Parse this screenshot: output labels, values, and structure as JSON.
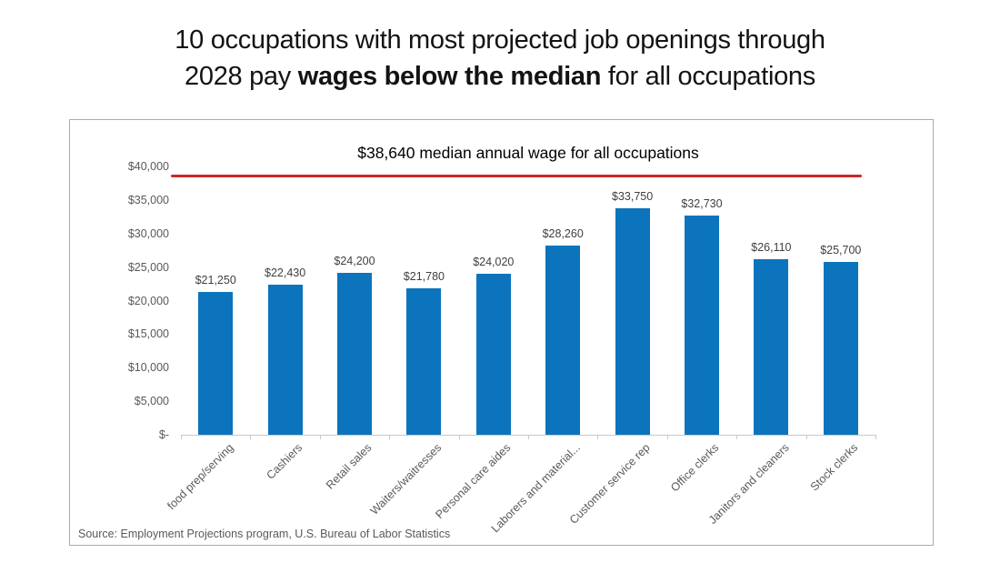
{
  "title": {
    "line1": "10 occupations with most projected job openings through",
    "line2_pre": "2028 pay ",
    "line2_bold": "wages below the median",
    "line2_post": " for all occupations"
  },
  "chart_data": {
    "type": "bar",
    "title": "10 occupations with most projected job openings through 2028 pay wages below the median for all occupations",
    "xlabel": "",
    "ylabel": "",
    "categories": [
      "food prep/serving",
      "Cashiers",
      "Retail sales",
      "Waiters/waitresses",
      "Personal care aides",
      "Laborers and material...",
      "Customer service rep",
      "Office clerks",
      "Janitors and cleaners",
      "Stock clerks"
    ],
    "values": [
      21250,
      22430,
      24200,
      21780,
      24020,
      28260,
      33750,
      32730,
      26110,
      25700
    ],
    "value_labels": [
      "$21,250",
      "$22,430",
      "$24,200",
      "$21,780",
      "$24,020",
      "$28,260",
      "$33,750",
      "$32,730",
      "$26,110",
      "$25,700"
    ],
    "ylim": [
      0,
      40000
    ],
    "ytick_step": 5000,
    "ytick_labels": [
      "$-",
      "$5,000",
      "$10,000",
      "$15,000",
      "$20,000",
      "$25,000",
      "$30,000",
      "$35,000",
      "$40,000"
    ],
    "median_line": {
      "value": 38640,
      "label": "$38,640 median annual wage for all occupations"
    },
    "grid": false,
    "legend": null,
    "source": "Source: Employment Projections program, U.S. Bureau of Labor Statistics"
  },
  "colors": {
    "bar": "#0b74bc",
    "median_line": "#cf2525",
    "axis_text": "#595959",
    "value_text": "#3f3f3f",
    "card_border": "#ababab",
    "axis_line": "#c9c9c9",
    "title_text": "#131313"
  }
}
